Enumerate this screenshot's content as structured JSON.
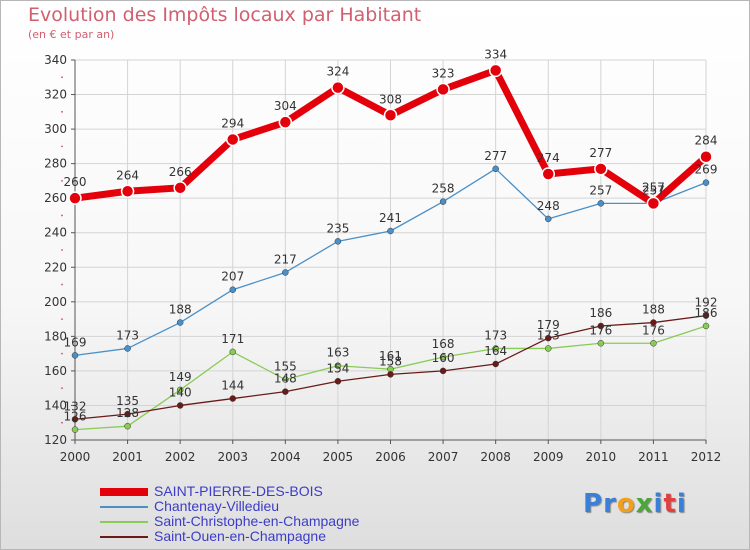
{
  "header": {
    "title": "Evolution des Impôts locaux par Habitant",
    "subtitle": "(en € et par an)"
  },
  "brand": {
    "letters": [
      "P",
      "r",
      "o",
      "x",
      "i",
      "t",
      "i"
    ],
    "colors": [
      "#3a7fd8",
      "#3a7fd8",
      "#f0a020",
      "#4aa838",
      "#3a7fd8",
      "#e04040",
      "#3a7fd8"
    ]
  },
  "chart_data": {
    "type": "line",
    "x": [
      "2000",
      "2001",
      "2002",
      "2003",
      "2004",
      "2005",
      "2006",
      "2007",
      "2008",
      "2009",
      "2010",
      "2011",
      "2012"
    ],
    "ylim": [
      120,
      340
    ],
    "yticks": [
      120,
      140,
      160,
      180,
      200,
      220,
      240,
      260,
      280,
      300,
      320,
      340
    ],
    "grid": true,
    "legend_position": "bottom-left",
    "series": [
      {
        "name": "SAINT-PIERRE-DES-BOIS",
        "color": "#e4000b",
        "values": [
          260,
          264,
          266,
          294,
          304,
          324,
          308,
          323,
          334,
          274,
          277,
          257,
          284
        ]
      },
      {
        "name": "Chantenay-Villedieu",
        "color": "#4a90c8",
        "values": [
          169,
          173,
          188,
          207,
          217,
          235,
          241,
          258,
          277,
          248,
          257,
          257,
          269
        ]
      },
      {
        "name": "Saint-Christophe-en-Champagne",
        "color": "#88cc55",
        "values": [
          126,
          128,
          149,
          171,
          155,
          163,
          161,
          168,
          173,
          173,
          176,
          176,
          186
        ]
      },
      {
        "name": "Saint-Ouen-en-Champagne",
        "color": "#6b1a1a",
        "values": [
          132,
          135,
          140,
          144,
          148,
          154,
          158,
          160,
          164,
          179,
          186,
          188,
          192
        ]
      }
    ]
  }
}
